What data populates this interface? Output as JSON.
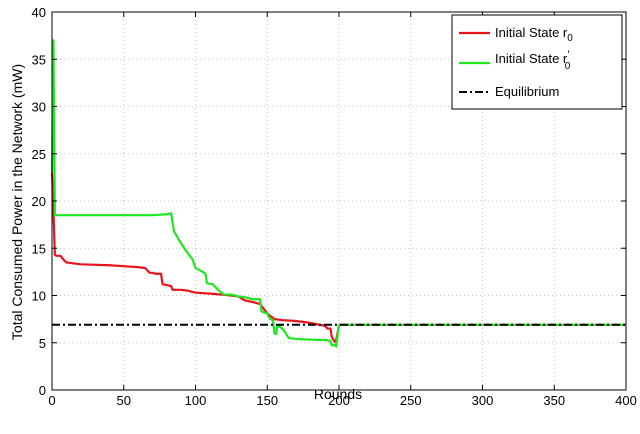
{
  "chart_data": {
    "type": "line",
    "xlabel": "Rounds",
    "ylabel": "Total Consumed Power in the Network (mW)",
    "xlim": [
      0,
      400
    ],
    "ylim": [
      0,
      40
    ],
    "xticks": [
      0,
      50,
      100,
      150,
      200,
      250,
      300,
      350,
      400
    ],
    "yticks": [
      0,
      5,
      10,
      15,
      20,
      25,
      30,
      35,
      40
    ],
    "grid": true,
    "legend_position": "top-right",
    "legend": [
      {
        "main": "Initial State r",
        "sub": "0",
        "prime": ""
      },
      {
        "main": "Initial State r",
        "sub": "0",
        "prime": "’"
      },
      {
        "main": "Equilibrium",
        "sub": "",
        "prime": ""
      }
    ],
    "colors": {
      "r0": "#e8141b",
      "r0_prime": "#1ee81e",
      "equilibrium": "#000000"
    },
    "series": [
      {
        "key": "r0",
        "style": "solid",
        "points": [
          [
            0,
            23
          ],
          [
            1,
            19
          ],
          [
            2,
            14.3
          ],
          [
            3,
            14.2
          ],
          [
            4,
            14.2
          ],
          [
            5,
            14.2
          ],
          [
            6,
            14.2
          ],
          [
            8,
            13.8
          ],
          [
            10,
            13.5
          ],
          [
            20,
            13.3
          ],
          [
            40,
            13.2
          ],
          [
            50,
            13.1
          ],
          [
            60,
            13
          ],
          [
            65,
            12.9
          ],
          [
            68,
            12.4
          ],
          [
            70,
            12.4
          ],
          [
            72,
            12.3
          ],
          [
            76,
            12.3
          ],
          [
            77,
            11.2
          ],
          [
            80,
            11.1
          ],
          [
            83,
            11
          ],
          [
            84,
            10.6
          ],
          [
            90,
            10.6
          ],
          [
            95,
            10.5
          ],
          [
            100,
            10.3
          ],
          [
            110,
            10.2
          ],
          [
            118,
            10.1
          ],
          [
            125,
            10
          ],
          [
            130,
            9.9
          ],
          [
            132,
            9.7
          ],
          [
            134,
            9.5
          ],
          [
            140,
            9.3
          ],
          [
            145,
            9.1
          ],
          [
            150,
            8.1
          ],
          [
            155,
            7.5
          ],
          [
            160,
            7.4
          ],
          [
            170,
            7.3
          ],
          [
            180,
            7.1
          ],
          [
            190,
            6.8
          ],
          [
            192,
            6.5
          ],
          [
            194,
            6.5
          ],
          [
            195,
            5.6
          ],
          [
            197,
            5.1
          ],
          [
            198,
            5.2
          ],
          [
            200,
            6.9
          ],
          [
            400,
            6.9
          ]
        ]
      },
      {
        "key": "r0_prime",
        "style": "solid",
        "points": [
          [
            0,
            23
          ],
          [
            1,
            37
          ],
          [
            2,
            18.5
          ],
          [
            10,
            18.5
          ],
          [
            40,
            18.5
          ],
          [
            70,
            18.5
          ],
          [
            80,
            18.6
          ],
          [
            83,
            18.7
          ],
          [
            85,
            16.8
          ],
          [
            88,
            16
          ],
          [
            93,
            14.8
          ],
          [
            98,
            13.8
          ],
          [
            100,
            12.9
          ],
          [
            104,
            12.6
          ],
          [
            107,
            12.3
          ],
          [
            108,
            11.3
          ],
          [
            112,
            11.2
          ],
          [
            115,
            10.7
          ],
          [
            118,
            10.3
          ],
          [
            120,
            10.1
          ],
          [
            125,
            10.1
          ],
          [
            130,
            9.9
          ],
          [
            135,
            9.8
          ],
          [
            140,
            9.6
          ],
          [
            145,
            9.6
          ],
          [
            146,
            8.3
          ],
          [
            150,
            8.1
          ],
          [
            152,
            7.5
          ],
          [
            154,
            7.4
          ],
          [
            155,
            6
          ],
          [
            156,
            5.9
          ],
          [
            157,
            6.7
          ],
          [
            159,
            6.7
          ],
          [
            162,
            6.2
          ],
          [
            165,
            5.5
          ],
          [
            170,
            5.4
          ],
          [
            185,
            5.3
          ],
          [
            190,
            5.3
          ],
          [
            194,
            5.2
          ],
          [
            195,
            4.7
          ],
          [
            197,
            4.8
          ],
          [
            198,
            4.6
          ],
          [
            200,
            6.9
          ],
          [
            400,
            6.9
          ]
        ]
      },
      {
        "key": "equilibrium",
        "style": "dashdot",
        "points": [
          [
            0,
            6.9
          ],
          [
            400,
            6.9
          ]
        ]
      }
    ]
  }
}
